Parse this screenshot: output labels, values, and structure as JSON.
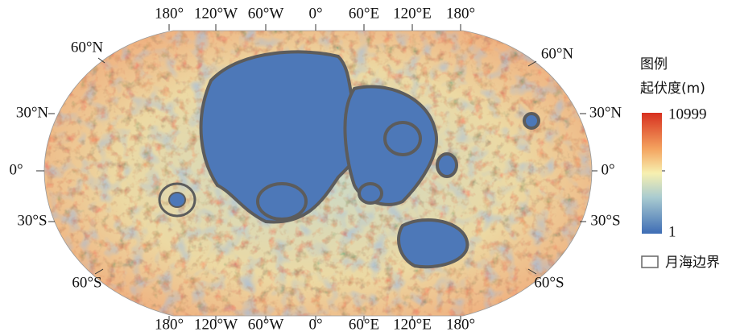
{
  "map": {
    "longitude_labels": [
      "180°",
      "120°W",
      "60°W",
      "0°",
      "60°E",
      "120°E",
      "180°"
    ],
    "latitude_labels": [
      "60°N",
      "30°N",
      "0°",
      "30°S",
      "60°S"
    ],
    "legend": {
      "title": "图例",
      "colorbar_title": "起伏度(m)",
      "max": 10999,
      "min": 1,
      "boundary_label": "月海边界"
    }
  }
}
